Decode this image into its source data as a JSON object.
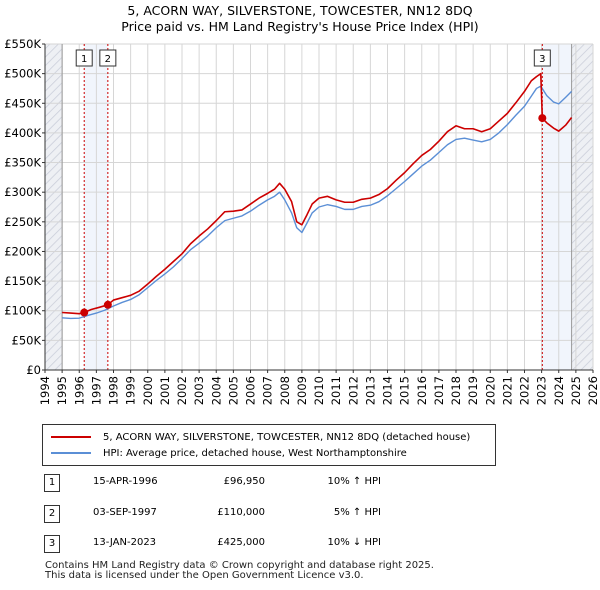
{
  "chart_data": {
    "type": "line",
    "title": "5, ACORN WAY, SILVERSTONE, TOWCESTER, NN12 8DQ",
    "subtitle": "Price paid vs. HM Land Registry's House Price Index (HPI)",
    "xlabel": "",
    "ylabel": "",
    "xlim": [
      1994,
      2026
    ],
    "ylim": [
      0,
      550000
    ],
    "x_ticks": [
      1994,
      1995,
      1996,
      1997,
      1998,
      1999,
      2000,
      2001,
      2002,
      2003,
      2004,
      2005,
      2006,
      2007,
      2008,
      2009,
      2010,
      2011,
      2012,
      2013,
      2014,
      2015,
      2016,
      2017,
      2018,
      2019,
      2020,
      2021,
      2022,
      2023,
      2024,
      2025,
      2026
    ],
    "y_ticks": [
      0,
      50000,
      100000,
      150000,
      200000,
      250000,
      300000,
      350000,
      400000,
      450000,
      500000,
      550000
    ],
    "y_tick_labels": [
      "£0",
      "£50K",
      "£100K",
      "£150K",
      "£200K",
      "£250K",
      "£300K",
      "£350K",
      "£400K",
      "£450K",
      "£500K",
      "£550K"
    ],
    "grid": true,
    "data_start": 1995.0,
    "data_end": 2024.75,
    "hatched_before": 1995.0,
    "hatched_after": 2024.75,
    "series": [
      {
        "name": "5, ACORN WAY, SILVERSTONE, TOWCESTER, NN12 8DQ (detached house)",
        "color": "#cc0000",
        "x": [
          1995.0,
          1995.5,
          1996.0,
          1996.29,
          1996.7,
          1997.2,
          1997.67,
          1998.0,
          1998.5,
          1999.0,
          1999.5,
          2000.0,
          2000.5,
          2001.0,
          2001.5,
          2002.0,
          2002.5,
          2003.0,
          2003.5,
          2004.0,
          2004.5,
          2005.0,
          2005.5,
          2006.0,
          2006.5,
          2007.0,
          2007.4,
          2007.7,
          2008.0,
          2008.4,
          2008.7,
          2009.0,
          2009.3,
          2009.6,
          2010.0,
          2010.5,
          2011.0,
          2011.5,
          2012.0,
          2012.5,
          2013.0,
          2013.5,
          2014.0,
          2014.5,
          2015.0,
          2015.5,
          2016.0,
          2016.5,
          2017.0,
          2017.5,
          2018.0,
          2018.5,
          2019.0,
          2019.5,
          2020.0,
          2020.5,
          2021.0,
          2021.5,
          2022.0,
          2022.4,
          2022.7,
          2022.95,
          2023.04,
          2023.3,
          2023.7,
          2024.0,
          2024.4,
          2024.75
        ],
        "y": [
          97000,
          96000,
          95000,
          96950,
          102000,
          106000,
          110000,
          118000,
          122000,
          126000,
          133000,
          145000,
          158000,
          170000,
          183000,
          196000,
          213000,
          226000,
          238000,
          252000,
          267000,
          268000,
          270000,
          280000,
          290000,
          298000,
          305000,
          315000,
          305000,
          284000,
          250000,
          245000,
          262000,
          280000,
          290000,
          293000,
          287000,
          283000,
          283000,
          288000,
          290000,
          296000,
          306000,
          320000,
          333000,
          348000,
          362000,
          372000,
          386000,
          402000,
          412000,
          407000,
          407000,
          402000,
          407000,
          420000,
          433000,
          451000,
          470000,
          488000,
          495000,
          500000,
          425000,
          417000,
          408000,
          403000,
          413000,
          426000
        ]
      },
      {
        "name": "HPI: Average price, detached house, West Northamptonshire",
        "color": "#5b8fd6",
        "x": [
          1995.0,
          1995.5,
          1996.0,
          1996.5,
          1997.0,
          1997.5,
          1998.0,
          1998.5,
          1999.0,
          1999.5,
          2000.0,
          2000.5,
          2001.0,
          2001.5,
          2002.0,
          2002.5,
          2003.0,
          2003.5,
          2004.0,
          2004.5,
          2005.0,
          2005.5,
          2006.0,
          2006.5,
          2007.0,
          2007.4,
          2007.7,
          2008.0,
          2008.4,
          2008.7,
          2009.0,
          2009.3,
          2009.6,
          2010.0,
          2010.5,
          2011.0,
          2011.5,
          2012.0,
          2012.5,
          2013.0,
          2013.5,
          2014.0,
          2014.5,
          2015.0,
          2015.5,
          2016.0,
          2016.5,
          2017.0,
          2017.5,
          2018.0,
          2018.5,
          2019.0,
          2019.5,
          2020.0,
          2020.5,
          2021.0,
          2021.5,
          2022.0,
          2022.4,
          2022.7,
          2022.95,
          2023.3,
          2023.7,
          2024.0,
          2024.4,
          2024.75
        ],
        "y": [
          88000,
          87000,
          87500,
          92000,
          96000,
          101000,
          108000,
          114000,
          119000,
          127000,
          139000,
          151000,
          162000,
          174000,
          188000,
          203000,
          214000,
          226000,
          240000,
          252000,
          256000,
          260000,
          268000,
          278000,
          287000,
          293000,
          300000,
          287000,
          265000,
          240000,
          232000,
          248000,
          265000,
          275000,
          279000,
          276000,
          271000,
          271000,
          276000,
          278000,
          284000,
          294000,
          306000,
          318000,
          331000,
          344000,
          354000,
          367000,
          380000,
          389000,
          391000,
          388000,
          385000,
          389000,
          400000,
          414000,
          430000,
          445000,
          462000,
          475000,
          479000,
          463000,
          452000,
          449000,
          460000,
          470000
        ]
      }
    ],
    "sale_points": [
      {
        "label": "1",
        "x": 1996.29,
        "y": 96950
      },
      {
        "label": "2",
        "x": 1997.67,
        "y": 110000
      },
      {
        "label": "3",
        "x": 2023.04,
        "y": 425000
      }
    ]
  },
  "legend": {
    "property_label": "5, ACORN WAY, SILVERSTONE, TOWCESTER, NN12 8DQ (detached house)",
    "hpi_label": "HPI: Average price, detached house, West Northamptonshire",
    "property_color": "#cc0000",
    "hpi_color": "#5b8fd6"
  },
  "transactions": [
    {
      "num": "1",
      "date": "15-APR-1996",
      "price": "£96,950",
      "hpi": "10% ↑ HPI"
    },
    {
      "num": "2",
      "date": "03-SEP-1997",
      "price": "£110,000",
      "hpi": "5% ↑ HPI"
    },
    {
      "num": "3",
      "date": "13-JAN-2023",
      "price": "£425,000",
      "hpi": "10% ↓ HPI"
    }
  ],
  "footer": {
    "line1": "Contains HM Land Registry data © Crown copyright and database right 2025.",
    "line2": "This data is licensed under the Open Government Licence v3.0."
  }
}
